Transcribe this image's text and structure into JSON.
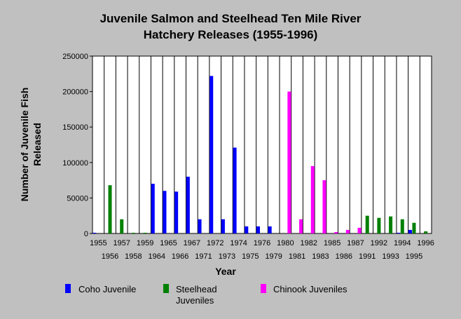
{
  "chart_data": {
    "type": "bar",
    "title": "Juvenile Salmon and Steelhead Ten Mile River",
    "subtitle": "Hatchery Releases (1955-1996)",
    "xlabel": "Year",
    "ylabel": "Number of Juvenile Fish Released",
    "ylabel_lines": [
      "Number of Juvenile Fish",
      "Released"
    ],
    "ylim": [
      0,
      250000
    ],
    "yticks": [
      "0",
      "50000",
      "100000",
      "150000",
      "200000",
      "250000"
    ],
    "grid": "vertical",
    "legend_position": "bottom",
    "categories": [
      "1955",
      "1956",
      "1957",
      "1958",
      "1959",
      "1964",
      "1965",
      "1966",
      "1967",
      "1971",
      "1972",
      "1973",
      "1974",
      "1975",
      "1976",
      "1979",
      "1980",
      "1981",
      "1982",
      "1983",
      "1985",
      "1986",
      "1987",
      "1991",
      "1992",
      "1993",
      "1994",
      "1995",
      "1996"
    ],
    "series": [
      {
        "name": "Coho Juvenile",
        "color": "#0000ff",
        "values": [
          1000,
          0,
          0,
          0,
          0,
          70000,
          60000,
          59000,
          80000,
          20000,
          222000,
          20000,
          121000,
          10000,
          10000,
          10000,
          0,
          0,
          0,
          0,
          0,
          0,
          0,
          0,
          0,
          0,
          1000,
          5000,
          0
        ]
      },
      {
        "name": "Steelhead Juveniles",
        "color": "#008000",
        "values": [
          0,
          68000,
          20000,
          1000,
          1000,
          0,
          0,
          0,
          0,
          0,
          0,
          0,
          0,
          0,
          0,
          0,
          0,
          0,
          0,
          0,
          0,
          0,
          0,
          25000,
          22000,
          24000,
          20000,
          15000,
          3000
        ]
      },
      {
        "name": "Chinook Juveniles",
        "color": "#ff00ff",
        "values": [
          0,
          0,
          0,
          0,
          0,
          0,
          0,
          0,
          0,
          0,
          0,
          0,
          0,
          0,
          0,
          0,
          200000,
          20000,
          95000,
          75000,
          2000,
          5000,
          8000,
          0,
          0,
          0,
          0,
          0,
          0
        ]
      }
    ]
  }
}
